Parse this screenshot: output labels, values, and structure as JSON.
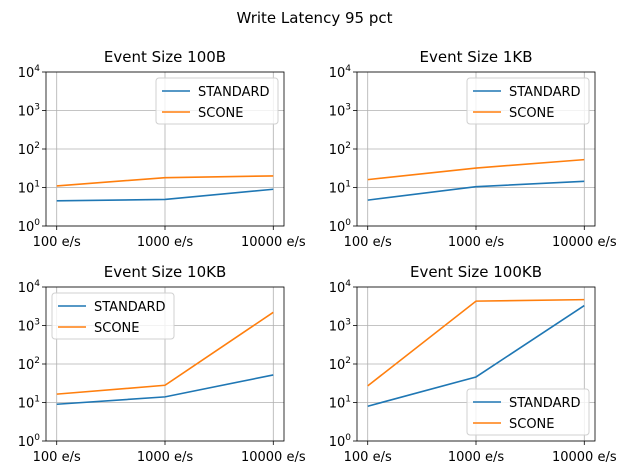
{
  "figure": {
    "title": "Write Latency 95 pct"
  },
  "colors": {
    "standard": "#1f77b4",
    "scone": "#ff7f0e"
  },
  "chart_data": [
    {
      "type": "line",
      "title": "Event Size 100B",
      "categories": [
        "100 e/s",
        "1000 e/s",
        "10000 e/s"
      ],
      "yscale": "log",
      "ylim": [
        1,
        10000
      ],
      "yticks": [
        1,
        10,
        100,
        1000,
        10000
      ],
      "grid": true,
      "legend": "upper right",
      "series": [
        {
          "name": "STANDARD",
          "values": [
            4.5,
            4.9,
            9.0
          ]
        },
        {
          "name": "SCONE",
          "values": [
            11.0,
            18.0,
            20.0
          ]
        }
      ]
    },
    {
      "type": "line",
      "title": "Event Size 1KB",
      "categories": [
        "100 e/s",
        "1000 e/s",
        "10000 e/s"
      ],
      "yscale": "log",
      "ylim": [
        1,
        10000
      ],
      "yticks": [
        1,
        10,
        100,
        1000,
        10000
      ],
      "grid": true,
      "legend": "upper right",
      "series": [
        {
          "name": "STANDARD",
          "values": [
            4.7,
            10.5,
            14.5
          ]
        },
        {
          "name": "SCONE",
          "values": [
            16.0,
            32.0,
            53.0
          ]
        }
      ]
    },
    {
      "type": "line",
      "title": "Event Size 10KB",
      "categories": [
        "100 e/s",
        "1000 e/s",
        "10000 e/s"
      ],
      "yscale": "log",
      "ylim": [
        1,
        10000
      ],
      "yticks": [
        1,
        10,
        100,
        1000,
        10000
      ],
      "grid": true,
      "legend": "upper left",
      "series": [
        {
          "name": "STANDARD",
          "values": [
            9.0,
            14.0,
            52.0
          ]
        },
        {
          "name": "SCONE",
          "values": [
            16.5,
            28.0,
            2200.0
          ]
        }
      ]
    },
    {
      "type": "line",
      "title": "Event Size 100KB",
      "categories": [
        "100 e/s",
        "1000 e/s",
        "10000 e/s"
      ],
      "yscale": "log",
      "ylim": [
        1,
        10000
      ],
      "yticks": [
        1,
        10,
        100,
        1000,
        10000
      ],
      "grid": true,
      "legend": "lower right",
      "series": [
        {
          "name": "STANDARD",
          "values": [
            8.0,
            46.0,
            3300.0
          ]
        },
        {
          "name": "SCONE",
          "values": [
            27.0,
            4300.0,
            4700.0
          ]
        }
      ]
    }
  ]
}
